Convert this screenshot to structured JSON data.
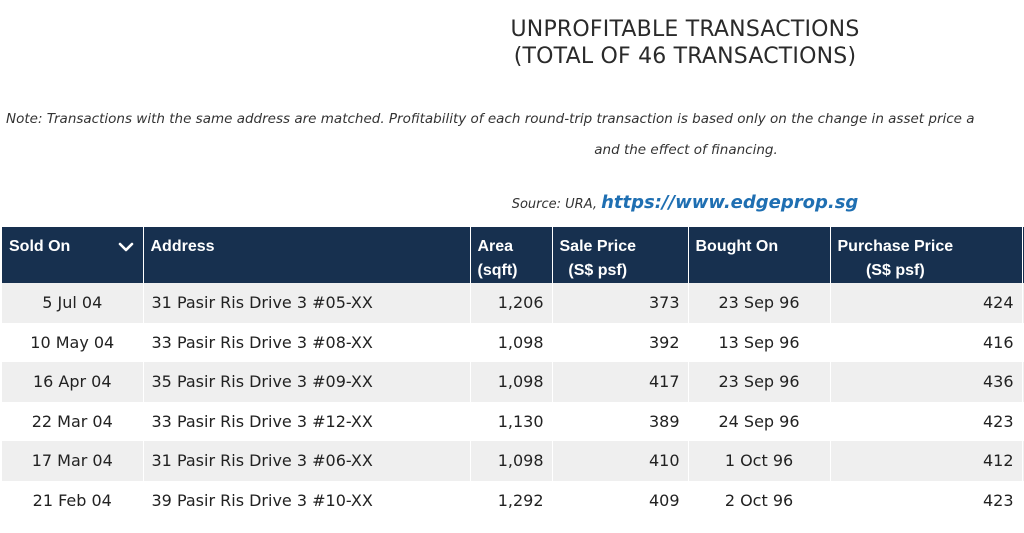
{
  "header": {
    "title_line1": "UNPROFITABLE TRANSACTIONS",
    "title_line2": "(TOTAL OF 46 TRANSACTIONS)"
  },
  "note": {
    "line1": "Note: Transactions with the same address are matched. Profitability of each round-trip transaction is based only on the change in asset price a",
    "line2": "and the effect of financing."
  },
  "source": {
    "label": "Source: URA,",
    "link_text": "https://www.edgeprop.sg"
  },
  "table": {
    "columns": [
      {
        "label": "Sold On",
        "sort_icon": "chevron-down-icon"
      },
      {
        "label": "Address"
      },
      {
        "label": "Area\n(sqft)"
      },
      {
        "label": "Sale Price\n(S$ psf)"
      },
      {
        "label": "Bought On"
      },
      {
        "label": "Purchase Price\n(S$ psf)"
      }
    ],
    "rows": [
      {
        "sold_on": "5 Jul 04",
        "address": "31 Pasir Ris Drive 3 #05-XX",
        "area": "1,206",
        "sale_price": "373",
        "bought_on": "23 Sep 96",
        "purchase_price": "424"
      },
      {
        "sold_on": "10 May 04",
        "address": "33 Pasir Ris Drive 3 #08-XX",
        "area": "1,098",
        "sale_price": "392",
        "bought_on": "13 Sep 96",
        "purchase_price": "416"
      },
      {
        "sold_on": "16 Apr 04",
        "address": "35 Pasir Ris Drive 3 #09-XX",
        "area": "1,098",
        "sale_price": "417",
        "bought_on": "23 Sep 96",
        "purchase_price": "436"
      },
      {
        "sold_on": "22 Mar 04",
        "address": "33 Pasir Ris Drive 3 #12-XX",
        "area": "1,130",
        "sale_price": "389",
        "bought_on": "24 Sep 96",
        "purchase_price": "423"
      },
      {
        "sold_on": "17 Mar 04",
        "address": "31 Pasir Ris Drive 3 #06-XX",
        "area": "1,098",
        "sale_price": "410",
        "bought_on": "1 Oct 96",
        "purchase_price": "412"
      },
      {
        "sold_on": "21 Feb 04",
        "address": "39 Pasir Ris Drive 3 #10-XX",
        "area": "1,292",
        "sale_price": "409",
        "bought_on": "2 Oct 96",
        "purchase_price": "423"
      }
    ]
  },
  "colors": {
    "header_bg": "#17304f",
    "link": "#1f6fb2",
    "row_alt": "#efefef"
  }
}
